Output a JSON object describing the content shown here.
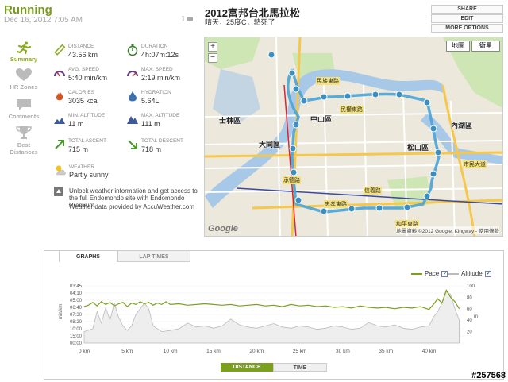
{
  "workout": {
    "sport": "Running",
    "date": "Dec 16, 2012 7:05 AM",
    "comment_count": "1"
  },
  "header": {
    "title": "2012富邦台北馬拉松",
    "subtitle": "晴天，25度C，熱死了"
  },
  "actions": {
    "share": "SHARE",
    "edit": "EDIT",
    "more": "MORE OPTIONS"
  },
  "sidebar": {
    "items": [
      {
        "label": "Summary",
        "icon": "runner-icon"
      },
      {
        "label": "HR Zones",
        "icon": "heart-icon"
      },
      {
        "label": "Comments",
        "icon": "speech-bubble-icon"
      },
      {
        "label": "Best Distances",
        "icon": "trophy-icon"
      }
    ]
  },
  "stats": {
    "distance": {
      "label": "DISTANCE",
      "value": "43.56 km"
    },
    "duration": {
      "label": "DURATION",
      "value": "4h:07m:12s"
    },
    "avg_speed": {
      "label": "AVG. SPEED",
      "value": "5:40 min/km"
    },
    "max_speed": {
      "label": "MAX. SPEED",
      "value": "2:19 min/km"
    },
    "calories": {
      "label": "CALORIES",
      "value": "3035 kcal"
    },
    "hydration": {
      "label": "HYDRATION",
      "value": "5.64L"
    },
    "min_altitude": {
      "label": "MIN. ALTITUDE",
      "value": "11 m"
    },
    "max_altitude": {
      "label": "MAX. ALTITUDE",
      "value": "111 m"
    },
    "total_ascent": {
      "label": "TOTAL ASCENT",
      "value": "715 m"
    },
    "total_descent": {
      "label": "TOTAL DESCENT",
      "value": "718 m"
    }
  },
  "weather": {
    "label": "WEATHER",
    "value": "Partly sunny",
    "unlock_text": "Unlock weather information and get access to the full Endomondo site with Endomondo Premium.",
    "credit": "Weather data provided by AccuWeather.com"
  },
  "map": {
    "map_button": "地圖",
    "satellite_button": "衛星",
    "zoom_in": "+",
    "zoom_out": "−",
    "copyright": "地圖資料 ©2012 Google, Kingway - 使用條款",
    "logo": "Google",
    "districts": [
      "士林區",
      "中山區",
      "大同區",
      "松山區",
      "內湖區",
      "中正區",
      "大安區",
      "萬華區",
      "信義區"
    ],
    "streets": [
      "民族東路",
      "民權東路",
      "市民大道",
      "忠孝東路",
      "信義路",
      "和平東路",
      "承德路",
      "基隆路"
    ],
    "colors": {
      "water": "#a8c8e8",
      "park": "#cde6b4",
      "road": "#ffffff",
      "highway": "#f5c84c",
      "route": "#4aa3d6",
      "bg": "#ece8dc"
    }
  },
  "graph": {
    "tabs": [
      "GRAPHS",
      "LAP TIMES"
    ],
    "legend": [
      {
        "name": "Pace",
        "checked": true,
        "color": "#7ba01e"
      },
      {
        "name": "Altitude",
        "checked": true,
        "color": "#bbbbbb"
      }
    ],
    "y_left_label": "min/km",
    "y_right_label": "m",
    "buttons": [
      "DISTANCE",
      "TIME"
    ]
  },
  "chart_data": {
    "type": "line",
    "xlabel": "",
    "x_unit": "km",
    "x_ticks": [
      "0 km",
      "5 km",
      "10 km",
      "15 km",
      "20 km",
      "25 km",
      "30 km",
      "35 km",
      "40 km"
    ],
    "x_range": [
      0,
      44
    ],
    "y_left_ticks": [
      "03:45",
      "04:10",
      "05:00",
      "06:40",
      "07:30",
      "08:20",
      "10:00",
      "15:00",
      "00:00"
    ],
    "y_right_ticks": [
      "100",
      "80",
      "60",
      "40",
      "20"
    ],
    "y_right_range": [
      0,
      100
    ],
    "series": [
      {
        "name": "Pace",
        "color": "#7ba01e",
        "x": [
          0,
          0.5,
          1,
          1.5,
          2,
          2.5,
          3,
          3.5,
          4,
          4.5,
          5,
          5.5,
          6,
          6.5,
          7,
          7.5,
          8,
          8.5,
          9,
          9.5,
          10,
          11,
          12,
          13,
          14,
          15,
          16,
          17,
          18,
          19,
          20,
          21,
          22,
          23,
          24,
          25,
          26,
          27,
          28,
          29,
          30,
          31,
          32,
          33,
          34,
          35,
          36,
          37,
          38,
          39,
          40,
          40.5,
          41,
          41.5,
          42,
          42.5,
          43,
          43.5
        ],
        "y_pos": [
          2.9,
          2.7,
          2.3,
          2.8,
          2.2,
          2.6,
          2.3,
          2.8,
          2.5,
          2.3,
          2.9,
          2.4,
          2.6,
          2.2,
          2.5,
          2.3,
          2.7,
          2.4,
          2.6,
          2.2,
          2.6,
          2.5,
          2.7,
          2.6,
          2.5,
          2.6,
          2.7,
          2.6,
          2.8,
          2.7,
          2.6,
          2.8,
          2.7,
          2.9,
          2.6,
          2.8,
          2.7,
          2.9,
          2.8,
          3.0,
          2.9,
          3.1,
          2.8,
          3.0,
          3.1,
          3.0,
          3.2,
          3.0,
          3.1,
          2.9,
          3.3,
          2.6,
          1.8,
          2.4,
          0.6,
          1.6,
          2.2,
          3.2
        ]
      },
      {
        "name": "Altitude",
        "color": "#bbbbbb",
        "x": [
          0,
          1,
          1.5,
          2,
          2.5,
          3,
          3.5,
          4,
          4.5,
          5,
          5.5,
          6,
          6.5,
          7,
          7.5,
          8,
          9,
          10,
          11,
          12,
          13,
          14,
          15,
          16,
          17,
          18,
          19,
          20,
          21,
          22,
          23,
          24,
          25,
          26,
          27,
          28,
          29,
          30,
          31,
          32,
          33,
          34,
          35,
          36,
          37,
          38,
          39,
          40,
          40.5,
          41,
          41.5,
          42,
          42.5,
          43,
          43.5
        ],
        "y": [
          20,
          25,
          55,
          35,
          62,
          40,
          70,
          45,
          30,
          22,
          30,
          50,
          60,
          70,
          60,
          30,
          20,
          22,
          25,
          35,
          28,
          30,
          26,
          30,
          42,
          32,
          28,
          26,
          30,
          34,
          28,
          26,
          30,
          28,
          24,
          26,
          30,
          28,
          24,
          26,
          36,
          30,
          28,
          32,
          26,
          24,
          28,
          30,
          45,
          55,
          70,
          90,
          85,
          60,
          40
        ]
      }
    ]
  }
}
